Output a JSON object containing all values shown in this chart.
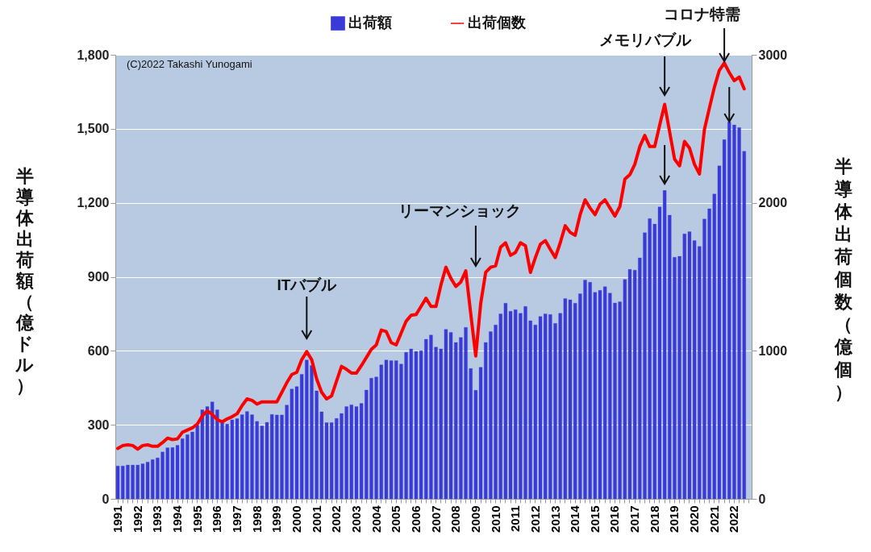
{
  "chart_data": {
    "type": "bar",
    "categories": [
      "1991",
      null,
      null,
      null,
      "1992",
      null,
      null,
      null,
      "1993",
      null,
      null,
      null,
      "1994",
      null,
      null,
      null,
      "1995",
      null,
      null,
      null,
      "1996",
      null,
      null,
      null,
      "1997",
      null,
      null,
      null,
      "1998",
      null,
      null,
      null,
      "1999",
      null,
      null,
      null,
      "2000",
      null,
      null,
      null,
      "2001",
      null,
      null,
      null,
      "2002",
      null,
      null,
      null,
      "2003",
      null,
      null,
      null,
      "2004",
      null,
      null,
      null,
      "2005",
      null,
      null,
      null,
      "2006",
      null,
      null,
      null,
      "2007",
      null,
      null,
      null,
      "2008",
      null,
      null,
      null,
      "2009",
      null,
      null,
      null,
      "2010",
      null,
      null,
      null,
      "2011",
      null,
      null,
      null,
      "2012",
      null,
      null,
      null,
      "2013",
      null,
      null,
      null,
      "2014",
      null,
      null,
      null,
      "2015",
      null,
      null,
      null,
      "2016",
      null,
      null,
      null,
      "2017",
      null,
      null,
      null,
      "2018",
      null,
      null,
      null,
      "2019",
      null,
      null,
      null,
      "2020",
      null,
      null,
      null,
      "2021",
      null,
      null,
      null,
      "2022",
      null,
      null,
      null
    ],
    "series": [
      {
        "name": "出荷額",
        "color": "#3a3ad8",
        "values": [
          133,
          133,
          137,
          137,
          137,
          142,
          149,
          159,
          166,
          190,
          207,
          208,
          217,
          244,
          260,
          271,
          298,
          361,
          374,
          393,
          361,
          309,
          303,
          320,
          325,
          341,
          354,
          341,
          314,
          296,
          310,
          342,
          340,
          340,
          380,
          445,
          455,
          505,
          563,
          541,
          438,
          353,
          309,
          309,
          326,
          346,
          374,
          381,
          374,
          387,
          441,
          489,
          494,
          543,
          563,
          560,
          560,
          546,
          594,
          608,
          598,
          600,
          647,
          664,
          615,
          608,
          687,
          675,
          634,
          654,
          695,
          528,
          440,
          533,
          634,
          678,
          705,
          750,
          793,
          760,
          767,
          752,
          780,
          722,
          705,
          739,
          750,
          747,
          711,
          752,
          812,
          807,
          793,
          831,
          887,
          878,
          837,
          845,
          860,
          834,
          794,
          799,
          889,
          930,
          927,
          977,
          1079,
          1136,
          1114,
          1183,
          1250,
          1150,
          979,
          983,
          1074,
          1083,
          1047,
          1023,
          1134,
          1176,
          1236,
          1350,
          1456,
          1527,
          1516,
          1505,
          1409,
          null
        ]
      },
      {
        "name": "出荷個数",
        "type": "line",
        "axis": "y2",
        "color": "#ff0000",
        "values": [
          340,
          360,
          365,
          360,
          335,
          360,
          365,
          355,
          355,
          380,
          410,
          400,
          405,
          450,
          465,
          480,
          505,
          560,
          595,
          570,
          535,
          520,
          540,
          555,
          575,
          630,
          675,
          665,
          640,
          655,
          655,
          655,
          655,
          720,
          785,
          840,
          855,
          940,
          995,
          940,
          810,
          720,
          675,
          695,
          795,
          895,
          875,
          850,
          850,
          900,
          955,
          1010,
          1040,
          1140,
          1130,
          1055,
          1040,
          1120,
          1200,
          1240,
          1245,
          1300,
          1355,
          1300,
          1300,
          1445,
          1565,
          1490,
          1435,
          1465,
          1540,
          1250,
          965,
          1320,
          1530,
          1565,
          1575,
          1700,
          1730,
          1645,
          1665,
          1730,
          1710,
          1530,
          1630,
          1720,
          1745,
          1685,
          1630,
          1730,
          1845,
          1800,
          1780,
          1920,
          2020,
          1965,
          1920,
          1990,
          2020,
          1965,
          1910,
          1975,
          2160,
          2190,
          2260,
          2380,
          2455,
          2380,
          2380,
          2525,
          2665,
          2480,
          2295,
          2250,
          2415,
          2370,
          2260,
          2195,
          2495,
          2640,
          2780,
          2895,
          2945,
          2880,
          2825,
          2850,
          2770,
          null
        ]
      }
    ],
    "ylabel": "半導体出荷額（億ドル）",
    "y2label": "半導体出荷個数（億個）",
    "ylim": [
      0,
      1800
    ],
    "yticks": [
      0,
      300,
      600,
      900,
      {
        "value": 1200,
        "label": "1,200"
      },
      {
        "value": 1500,
        "label": "1,500"
      },
      {
        "value": 1800,
        "label": "1,800"
      }
    ],
    "y2lim": [
      0,
      3000
    ],
    "y2ticks": [
      0,
      1000,
      2000,
      3000
    ],
    "grid": "y",
    "legend": "top",
    "annotations": [
      "(C)2022 Takashi Yunogami",
      "ITバブル",
      "リーマンショック",
      "メモリバブル",
      "コロナ特需"
    ]
  }
}
